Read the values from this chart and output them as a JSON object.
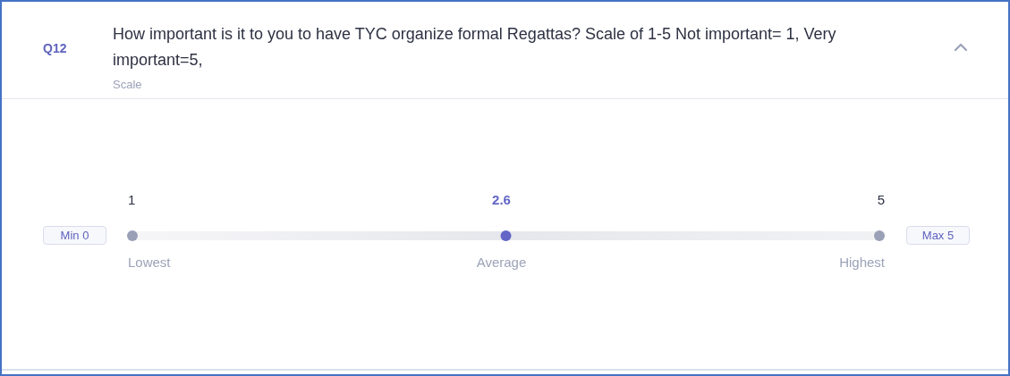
{
  "chart_data": {
    "type": "other",
    "title": "How important is it to you to have TYC organize formal Regattas? Scale of 1-5 Not important= 1, Very important=5,",
    "subtitle": "Scale",
    "categories": [
      "Lowest",
      "Average",
      "Highest"
    ],
    "values": [
      1,
      2.6,
      5
    ],
    "colors": [
      "#9aa1b7",
      "#6366c6",
      "#9aa1b7"
    ],
    "data_labels": true,
    "annotations": [
      "Q12",
      "Min 0",
      "Max 5"
    ]
  }
}
